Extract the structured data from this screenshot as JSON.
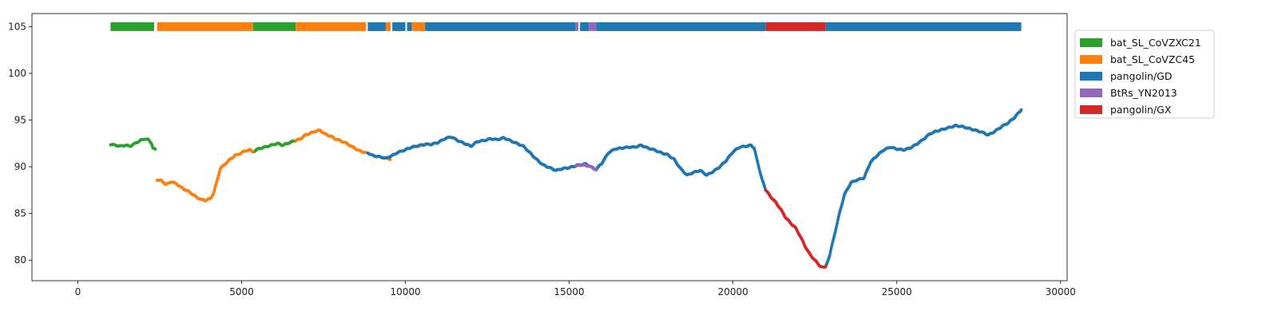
{
  "chart_data": {
    "type": "scatter",
    "title": "",
    "xlabel": "",
    "ylabel": "",
    "xlim": [
      -1400,
      30200
    ],
    "ylim": [
      77.8,
      106.4
    ],
    "xticks": [
      0,
      5000,
      10000,
      15000,
      20000,
      25000,
      30000
    ],
    "yticks": [
      80,
      85,
      90,
      95,
      100,
      105
    ],
    "grid": false,
    "legend_position": "outside-top-right",
    "colors": {
      "bat_SL_CoVZXC21": "#2ca02c",
      "bat_SL_CoVZC45": "#ff7f0e",
      "pangolin/GD": "#1f77b4",
      "BtRs_YN2013": "#9467bd",
      "pangolin/GX": "#d62728"
    },
    "legend": [
      "bat_SL_CoVZXC21",
      "bat_SL_CoVZC45",
      "pangolin/GD",
      "BtRs_YN2013",
      "pangolin/GX"
    ],
    "segments_bar": {
      "y": 105,
      "segments": [
        {
          "start": 1000,
          "end": 2330,
          "series": "bat_SL_CoVZXC21"
        },
        {
          "start": 2420,
          "end": 5350,
          "series": "bat_SL_CoVZC45"
        },
        {
          "start": 5350,
          "end": 6650,
          "series": "bat_SL_CoVZXC21"
        },
        {
          "start": 6650,
          "end": 8800,
          "series": "bat_SL_CoVZC45"
        },
        {
          "start": 8850,
          "end": 9400,
          "series": "pangolin/GD"
        },
        {
          "start": 9400,
          "end": 9550,
          "series": "bat_SL_CoVZC45"
        },
        {
          "start": 9600,
          "end": 10000,
          "series": "pangolin/GD"
        },
        {
          "start": 10050,
          "end": 10200,
          "series": "pangolin/GD"
        },
        {
          "start": 10200,
          "end": 10600,
          "series": "bat_SL_CoVZC45"
        },
        {
          "start": 10600,
          "end": 15200,
          "series": "pangolin/GD"
        },
        {
          "start": 15200,
          "end": 15280,
          "series": "BtRs_YN2013"
        },
        {
          "start": 15330,
          "end": 15600,
          "series": "pangolin/GD"
        },
        {
          "start": 15600,
          "end": 15820,
          "series": "BtRs_YN2013"
        },
        {
          "start": 15820,
          "end": 21000,
          "series": "pangolin/GD"
        },
        {
          "start": 21000,
          "end": 22830,
          "series": "pangolin/GX"
        },
        {
          "start": 22830,
          "end": 28800,
          "series": "pangolin/GD"
        }
      ]
    },
    "series": [
      {
        "name": "bat_SL_CoVZXC21",
        "points": [
          [
            1000,
            92.4
          ],
          [
            1150,
            92.3
          ],
          [
            1300,
            92.2
          ],
          [
            1450,
            92.3
          ],
          [
            1600,
            92.2
          ],
          [
            1750,
            92.5
          ],
          [
            1900,
            92.8
          ],
          [
            2050,
            93.0
          ],
          [
            2150,
            92.9
          ],
          [
            2250,
            92.5
          ],
          [
            2300,
            92.0
          ],
          [
            2380,
            91.8
          ],
          [
            5350,
            91.6
          ],
          [
            5500,
            91.9
          ],
          [
            5700,
            92.1
          ],
          [
            5900,
            92.3
          ],
          [
            6100,
            92.5
          ],
          [
            6250,
            92.3
          ],
          [
            6400,
            92.5
          ],
          [
            6550,
            92.7
          ],
          [
            6650,
            92.8
          ]
        ]
      },
      {
        "name": "bat_SL_CoVZC45",
        "points": [
          [
            2420,
            88.6
          ],
          [
            2550,
            88.5
          ],
          [
            2700,
            88.1
          ],
          [
            2850,
            88.4
          ],
          [
            3000,
            88.2
          ],
          [
            3150,
            87.8
          ],
          [
            3300,
            87.5
          ],
          [
            3450,
            87.2
          ],
          [
            3600,
            86.8
          ],
          [
            3750,
            86.5
          ],
          [
            3900,
            86.4
          ],
          [
            4050,
            86.6
          ],
          [
            4150,
            87.2
          ],
          [
            4250,
            88.5
          ],
          [
            4350,
            89.8
          ],
          [
            4500,
            90.3
          ],
          [
            4650,
            90.8
          ],
          [
            4800,
            91.2
          ],
          [
            4950,
            91.4
          ],
          [
            5100,
            91.7
          ],
          [
            5250,
            91.8
          ],
          [
            5350,
            91.6
          ],
          [
            6650,
            92.8
          ],
          [
            6800,
            93.0
          ],
          [
            6950,
            93.4
          ],
          [
            7100,
            93.6
          ],
          [
            7250,
            93.8
          ],
          [
            7400,
            93.9
          ],
          [
            7550,
            93.5
          ],
          [
            7700,
            93.3
          ],
          [
            7850,
            93.0
          ],
          [
            8000,
            92.8
          ],
          [
            8150,
            92.6
          ],
          [
            8300,
            92.3
          ],
          [
            8450,
            92.0
          ],
          [
            8600,
            91.7
          ],
          [
            8800,
            91.5
          ],
          [
            9400,
            90.9
          ],
          [
            9550,
            90.8
          ],
          [
            10200,
            92.1
          ],
          [
            10350,
            92.2
          ],
          [
            10500,
            92.3
          ],
          [
            10600,
            92.4
          ]
        ]
      },
      {
        "name": "pangolin/GD",
        "points": [
          [
            8850,
            91.5
          ],
          [
            9000,
            91.2
          ],
          [
            9150,
            91.1
          ],
          [
            9300,
            91.0
          ],
          [
            9400,
            90.9
          ],
          [
            9600,
            91.2
          ],
          [
            9750,
            91.5
          ],
          [
            9900,
            91.7
          ],
          [
            10000,
            91.8
          ],
          [
            10050,
            91.9
          ],
          [
            10200,
            92.1
          ],
          [
            10600,
            92.4
          ],
          [
            10800,
            92.4
          ],
          [
            11000,
            92.6
          ],
          [
            11200,
            93.0
          ],
          [
            11400,
            93.2
          ],
          [
            11600,
            92.8
          ],
          [
            11800,
            92.5
          ],
          [
            12000,
            92.2
          ],
          [
            12200,
            92.7
          ],
          [
            12400,
            92.8
          ],
          [
            12600,
            93.0
          ],
          [
            12800,
            92.9
          ],
          [
            13000,
            93.1
          ],
          [
            13200,
            92.8
          ],
          [
            13400,
            92.5
          ],
          [
            13600,
            92.2
          ],
          [
            13800,
            91.5
          ],
          [
            14000,
            90.8
          ],
          [
            14200,
            90.2
          ],
          [
            14400,
            89.9
          ],
          [
            14600,
            89.6
          ],
          [
            14800,
            89.8
          ],
          [
            15000,
            89.9
          ],
          [
            15200,
            90.1
          ],
          [
            15330,
            90.2
          ],
          [
            15500,
            90.3
          ],
          [
            15600,
            90.1
          ],
          [
            15820,
            89.7
          ],
          [
            16000,
            90.4
          ],
          [
            16200,
            91.5
          ],
          [
            16400,
            91.9
          ],
          [
            16600,
            92.0
          ],
          [
            16800,
            92.1
          ],
          [
            17000,
            92.1
          ],
          [
            17200,
            92.3
          ],
          [
            17400,
            92.0
          ],
          [
            17600,
            91.8
          ],
          [
            17800,
            91.5
          ],
          [
            18000,
            91.3
          ],
          [
            18200,
            90.8
          ],
          [
            18400,
            89.8
          ],
          [
            18600,
            89.1
          ],
          [
            18800,
            89.4
          ],
          [
            19000,
            89.6
          ],
          [
            19200,
            89.1
          ],
          [
            19400,
            89.5
          ],
          [
            19600,
            90.0
          ],
          [
            19800,
            90.7
          ],
          [
            20000,
            91.6
          ],
          [
            20200,
            92.1
          ],
          [
            20400,
            92.2
          ],
          [
            20550,
            92.3
          ],
          [
            20650,
            92.0
          ],
          [
            20700,
            91.2
          ],
          [
            20800,
            89.8
          ],
          [
            20900,
            88.5
          ],
          [
            21000,
            87.5
          ],
          [
            22830,
            79.3
          ],
          [
            22950,
            80.5
          ],
          [
            23050,
            82.0
          ],
          [
            23150,
            83.5
          ],
          [
            23250,
            85.0
          ],
          [
            23400,
            87.0
          ],
          [
            23600,
            88.3
          ],
          [
            23800,
            88.6
          ],
          [
            24000,
            88.8
          ],
          [
            24200,
            90.5
          ],
          [
            24400,
            91.2
          ],
          [
            24600,
            91.8
          ],
          [
            24800,
            92.1
          ],
          [
            25000,
            91.9
          ],
          [
            25200,
            91.8
          ],
          [
            25400,
            92.0
          ],
          [
            25600,
            92.4
          ],
          [
            25800,
            92.9
          ],
          [
            26000,
            93.5
          ],
          [
            26200,
            93.8
          ],
          [
            26400,
            94.0
          ],
          [
            26600,
            94.2
          ],
          [
            26800,
            94.4
          ],
          [
            27000,
            94.3
          ],
          [
            27200,
            94.1
          ],
          [
            27400,
            93.9
          ],
          [
            27600,
            93.7
          ],
          [
            27800,
            93.4
          ],
          [
            28000,
            93.8
          ],
          [
            28200,
            94.3
          ],
          [
            28400,
            94.7
          ],
          [
            28600,
            95.3
          ],
          [
            28800,
            96.1
          ]
        ]
      },
      {
        "name": "BtRs_YN2013",
        "points": [
          [
            15200,
            90.1
          ],
          [
            15280,
            90.2
          ],
          [
            15600,
            90.1
          ],
          [
            15700,
            89.9
          ],
          [
            15820,
            89.7
          ]
        ]
      },
      {
        "name": "pangolin/GX",
        "points": [
          [
            21000,
            87.5
          ],
          [
            21150,
            86.8
          ],
          [
            21300,
            86.2
          ],
          [
            21450,
            85.5
          ],
          [
            21600,
            84.6
          ],
          [
            21750,
            84.0
          ],
          [
            21900,
            83.5
          ],
          [
            22050,
            82.6
          ],
          [
            22200,
            81.5
          ],
          [
            22350,
            80.6
          ],
          [
            22500,
            80.0
          ],
          [
            22650,
            79.4
          ],
          [
            22750,
            79.2
          ],
          [
            22830,
            79.3
          ]
        ]
      }
    ]
  }
}
